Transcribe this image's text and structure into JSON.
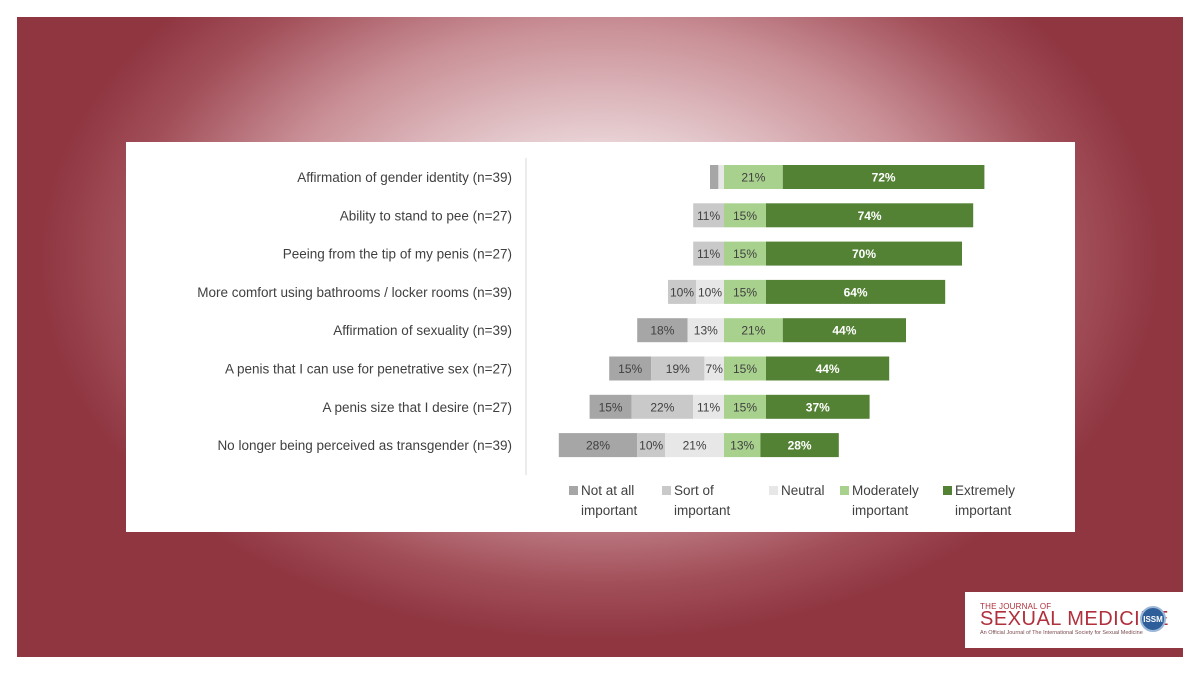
{
  "chart_data": {
    "type": "bar",
    "orientation": "horizontal",
    "stacked": "diverging",
    "categories": [
      "Affirmation of gender identity (n=39)",
      "Ability to stand to pee (n=27)",
      "Peeing from the tip of my penis (n=27)",
      "More comfort using bathrooms / locker rooms (n=39)",
      "Affirmation of sexuality (n=39)",
      "A penis that I can use for penetrative sex (n=27)",
      "A penis size that I desire (n=27)",
      "No longer being perceived as transgender (n=39)"
    ],
    "series": [
      {
        "name": "Not at all important",
        "color": "#a6a6a6",
        "values": [
          3,
          0,
          0,
          0,
          18,
          15,
          15,
          28
        ]
      },
      {
        "name": "Sort of important",
        "color": "#c9c9c9",
        "values": [
          0,
          11,
          11,
          10,
          0,
          19,
          22,
          10
        ]
      },
      {
        "name": "Neutral",
        "color": "#e7e7e7",
        "values": [
          2,
          0,
          0,
          10,
          13,
          7,
          11,
          21
        ]
      },
      {
        "name": "Moderately important",
        "color": "#a9d18e",
        "values": [
          21,
          15,
          15,
          15,
          21,
          15,
          15,
          13
        ]
      },
      {
        "name": "Extremely important",
        "color": "#548235",
        "values": [
          72,
          74,
          70,
          64,
          44,
          44,
          37,
          28
        ]
      }
    ],
    "data_labels": [
      [
        "",
        "",
        "",
        "21%",
        "72%"
      ],
      [
        "",
        "11%",
        "",
        "15%",
        "74%"
      ],
      [
        "",
        "11%",
        "",
        "15%",
        "70%"
      ],
      [
        "",
        "10%",
        "10%",
        "15%",
        "64%"
      ],
      [
        "18%",
        "",
        "13%",
        "21%",
        "44%"
      ],
      [
        "15%",
        "19%",
        "7%",
        "15%",
        "44%"
      ],
      [
        "15%",
        "22%",
        "11%",
        "15%",
        "37%"
      ],
      [
        "28%",
        "10%",
        "21%",
        "13%",
        "28%"
      ]
    ],
    "legend": {
      "position": "bottom",
      "items": [
        [
          "Not at all",
          "important"
        ],
        [
          "Sort of",
          "important"
        ],
        [
          "Neutral",
          ""
        ],
        [
          "Moderately",
          "important"
        ],
        [
          "Extremely",
          "important"
        ]
      ]
    },
    "grid": false
  },
  "logo": {
    "small_text": "THE JOURNAL OF",
    "main_text": "SEXUAL MEDICINE",
    "tiny_text": "An Official Journal of The International Society for Sexual Medicine",
    "badge_text": "ISSM"
  }
}
